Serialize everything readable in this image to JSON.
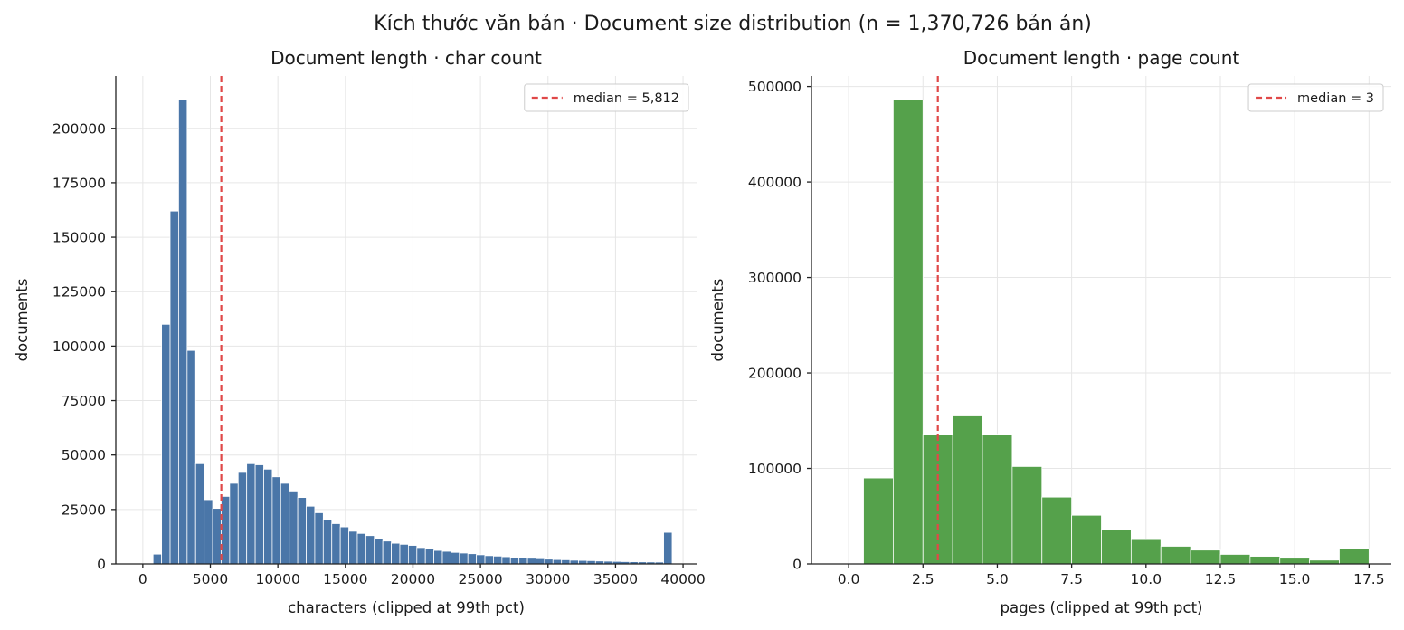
{
  "figure": {
    "title": "Kích thước văn bản · Document size distribution (n = 1,370,726 bản án)"
  },
  "colors": {
    "chars_bar": "#4a76a8",
    "pages_bar": "#55a14b",
    "median_line": "#e04848"
  },
  "chart_data": [
    {
      "type": "bar",
      "title": "Document length · char count",
      "xlabel": "characters (clipped at 99th pct)",
      "ylabel": "documents",
      "xlim": [
        -2000,
        41000
      ],
      "ylim": [
        0,
        224000
      ],
      "xticks": [
        0,
        5000,
        10000,
        15000,
        20000,
        25000,
        30000,
        35000,
        40000
      ],
      "yticks": [
        0,
        25000,
        50000,
        75000,
        100000,
        125000,
        150000,
        175000,
        200000
      ],
      "grid": true,
      "legend_position": "top-right",
      "median": {
        "value": 5812,
        "label": "median = 5,812"
      },
      "bin_width": 630,
      "bins": [
        {
          "x": 1075,
          "y": 4500
        },
        {
          "x": 1705,
          "y": 110000
        },
        {
          "x": 2335,
          "y": 162000
        },
        {
          "x": 2965,
          "y": 213000
        },
        {
          "x": 3595,
          "y": 98000
        },
        {
          "x": 4225,
          "y": 46000
        },
        {
          "x": 4855,
          "y": 29500
        },
        {
          "x": 5485,
          "y": 25500
        },
        {
          "x": 6115,
          "y": 31000
        },
        {
          "x": 6745,
          "y": 37000
        },
        {
          "x": 7375,
          "y": 42000
        },
        {
          "x": 8005,
          "y": 46000
        },
        {
          "x": 8635,
          "y": 45500
        },
        {
          "x": 9265,
          "y": 43500
        },
        {
          "x": 9895,
          "y": 40000
        },
        {
          "x": 10525,
          "y": 37000
        },
        {
          "x": 11155,
          "y": 33500
        },
        {
          "x": 11785,
          "y": 30500
        },
        {
          "x": 12415,
          "y": 26500
        },
        {
          "x": 13045,
          "y": 23500
        },
        {
          "x": 13675,
          "y": 20500
        },
        {
          "x": 14305,
          "y": 18500
        },
        {
          "x": 14935,
          "y": 17000
        },
        {
          "x": 15565,
          "y": 15000
        },
        {
          "x": 16195,
          "y": 14000
        },
        {
          "x": 16825,
          "y": 13000
        },
        {
          "x": 17455,
          "y": 11500
        },
        {
          "x": 18085,
          "y": 10500
        },
        {
          "x": 18715,
          "y": 9500
        },
        {
          "x": 19345,
          "y": 9000
        },
        {
          "x": 19975,
          "y": 8500
        },
        {
          "x": 20605,
          "y": 7500
        },
        {
          "x": 21235,
          "y": 7000
        },
        {
          "x": 21865,
          "y": 6200
        },
        {
          "x": 22495,
          "y": 5800
        },
        {
          "x": 23125,
          "y": 5300
        },
        {
          "x": 23755,
          "y": 5000
        },
        {
          "x": 24385,
          "y": 4700
        },
        {
          "x": 25015,
          "y": 4200
        },
        {
          "x": 25645,
          "y": 3800
        },
        {
          "x": 26275,
          "y": 3600
        },
        {
          "x": 26905,
          "y": 3300
        },
        {
          "x": 27535,
          "y": 3000
        },
        {
          "x": 28165,
          "y": 2800
        },
        {
          "x": 28795,
          "y": 2600
        },
        {
          "x": 29425,
          "y": 2400
        },
        {
          "x": 30055,
          "y": 2200
        },
        {
          "x": 30685,
          "y": 2000
        },
        {
          "x": 31315,
          "y": 1900
        },
        {
          "x": 31945,
          "y": 1700
        },
        {
          "x": 32575,
          "y": 1600
        },
        {
          "x": 33205,
          "y": 1500
        },
        {
          "x": 33835,
          "y": 1350
        },
        {
          "x": 34465,
          "y": 1250
        },
        {
          "x": 35095,
          "y": 1150
        },
        {
          "x": 35725,
          "y": 1050
        },
        {
          "x": 36355,
          "y": 1000
        },
        {
          "x": 36985,
          "y": 950
        },
        {
          "x": 37615,
          "y": 900
        },
        {
          "x": 38245,
          "y": 850
        },
        {
          "x": 38875,
          "y": 14500
        }
      ]
    },
    {
      "type": "bar",
      "title": "Document length · page count",
      "xlabel": "pages (clipped at 99th pct)",
      "ylabel": "documents",
      "xlim": [
        -1.25,
        18.25
      ],
      "ylim": [
        0,
        511000
      ],
      "xticks": [
        0.0,
        2.5,
        5.0,
        7.5,
        10.0,
        12.5,
        15.0,
        17.5
      ],
      "xtick_labels": [
        "0.0",
        "2.5",
        "5.0",
        "7.5",
        "10.0",
        "12.5",
        "15.0",
        "17.5"
      ],
      "yticks": [
        0,
        100000,
        200000,
        300000,
        400000,
        500000
      ],
      "grid": true,
      "legend_position": "top-right",
      "median": {
        "value": 3,
        "label": "median = 3"
      },
      "bin_width": 1,
      "bins": [
        {
          "x": 1,
          "y": 90000
        },
        {
          "x": 2,
          "y": 486000
        },
        {
          "x": 3,
          "y": 135000
        },
        {
          "x": 4,
          "y": 155000
        },
        {
          "x": 5,
          "y": 135000
        },
        {
          "x": 6,
          "y": 102000
        },
        {
          "x": 7,
          "y": 70000
        },
        {
          "x": 8,
          "y": 51000
        },
        {
          "x": 9,
          "y": 36000
        },
        {
          "x": 10,
          "y": 25500
        },
        {
          "x": 11,
          "y": 18500
        },
        {
          "x": 12,
          "y": 14500
        },
        {
          "x": 13,
          "y": 10000
        },
        {
          "x": 14,
          "y": 8000
        },
        {
          "x": 15,
          "y": 6000
        },
        {
          "x": 16,
          "y": 4000
        },
        {
          "x": 17,
          "y": 16000
        }
      ]
    }
  ]
}
